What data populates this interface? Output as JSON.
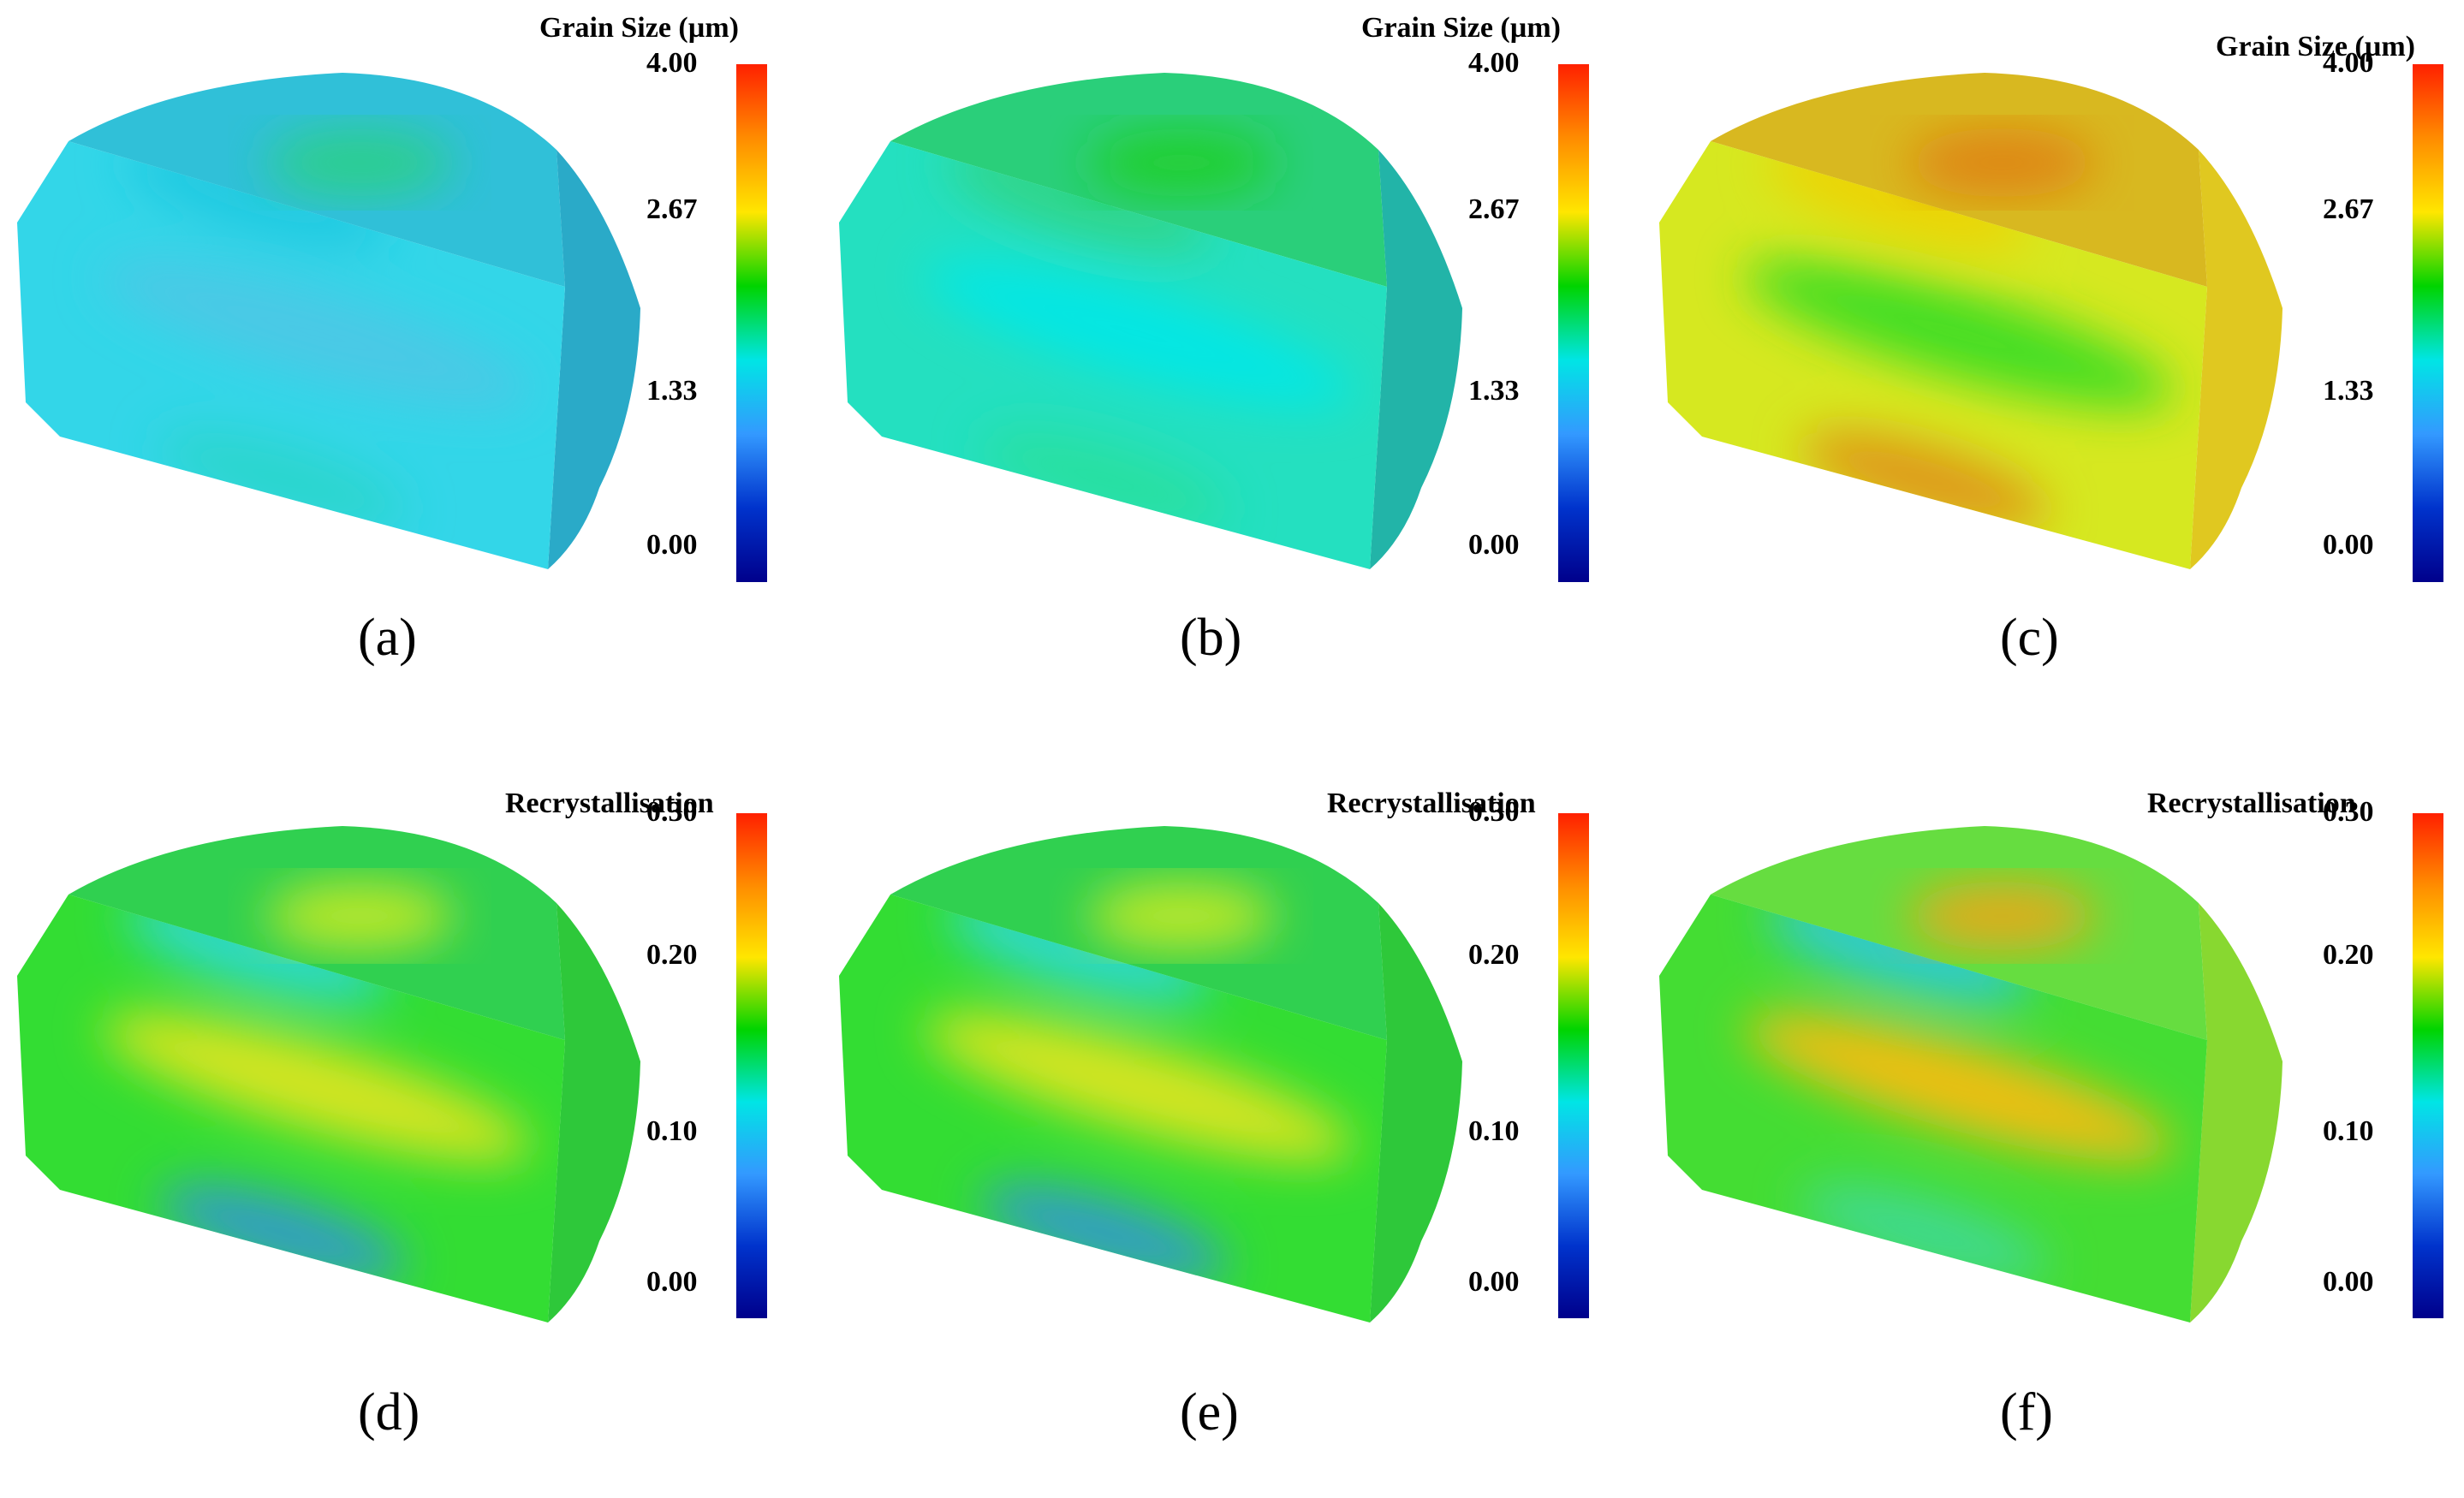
{
  "panels": [
    {
      "id": "a",
      "caption": "(a)",
      "legend_title": "Grain Size (µm)",
      "ticks": [
        "4.00",
        "2.67",
        "1.33",
        "0.00"
      ],
      "scheme": "a"
    },
    {
      "id": "b",
      "caption": "(b)",
      "legend_title": "Grain Size (µm)",
      "ticks": [
        "4.00",
        "2.67",
        "1.33",
        "0.00"
      ],
      "scheme": "b"
    },
    {
      "id": "c",
      "caption": "(c)",
      "legend_title": "Grain Size (µm)",
      "ticks": [
        "4.00",
        "2.67",
        "1.33",
        "0.00"
      ],
      "scheme": "c"
    },
    {
      "id": "d",
      "caption": "(d)",
      "legend_title": "Recrystallisation",
      "ticks": [
        "0.30",
        "0.20",
        "0.10",
        "0.00"
      ],
      "scheme": "d"
    },
    {
      "id": "e",
      "caption": "(e)",
      "legend_title": "Recrystallisation",
      "ticks": [
        "0.30",
        "0.20",
        "0.10",
        "0.00"
      ],
      "scheme": "d"
    },
    {
      "id": "f",
      "caption": "(f)",
      "legend_title": "Recrystallisation",
      "ticks": [
        "0.30",
        "0.20",
        "0.10",
        "0.00"
      ],
      "scheme": "f"
    }
  ],
  "colormap": [
    "#ff2000",
    "#ff8c00",
    "#ffe600",
    "#00d400",
    "#00e5e5",
    "#3399ff",
    "#0033cc",
    "#00008b"
  ],
  "schemes": {
    "a": {
      "side": "#33d6e8",
      "top": "#30c0d8",
      "right": "#2aaac8",
      "bands": [
        "#4cc8e6",
        "#20c8e0",
        "#2ad6c8"
      ],
      "hot": "#29d27a"
    },
    "b": {
      "side": "#24e0c0",
      "top": "#2acf7a",
      "right": "#22b4a8",
      "bands": [
        "#00e8e8",
        "#33d480",
        "#2adf9a"
      ],
      "hot": "#20d020"
    },
    "c": {
      "side": "#d6e820",
      "top": "#d8b820",
      "right": "#e0c820",
      "bands": [
        "#33dd22",
        "#f0d000",
        "#e08a18"
      ],
      "hot": "#e07a10"
    },
    "d": {
      "side": "#33dd33",
      "top": "#30d050",
      "right": "#2ec83a",
      "bands": [
        "#e6e620",
        "#30d8e0",
        "#3390e0"
      ],
      "hot": "#ddee22"
    },
    "f": {
      "side": "#44dd33",
      "top": "#66dd40",
      "right": "#88d830",
      "bands": [
        "#ffbb10",
        "#30c8e8",
        "#40d8a0"
      ],
      "hot": "#ffa010"
    }
  }
}
